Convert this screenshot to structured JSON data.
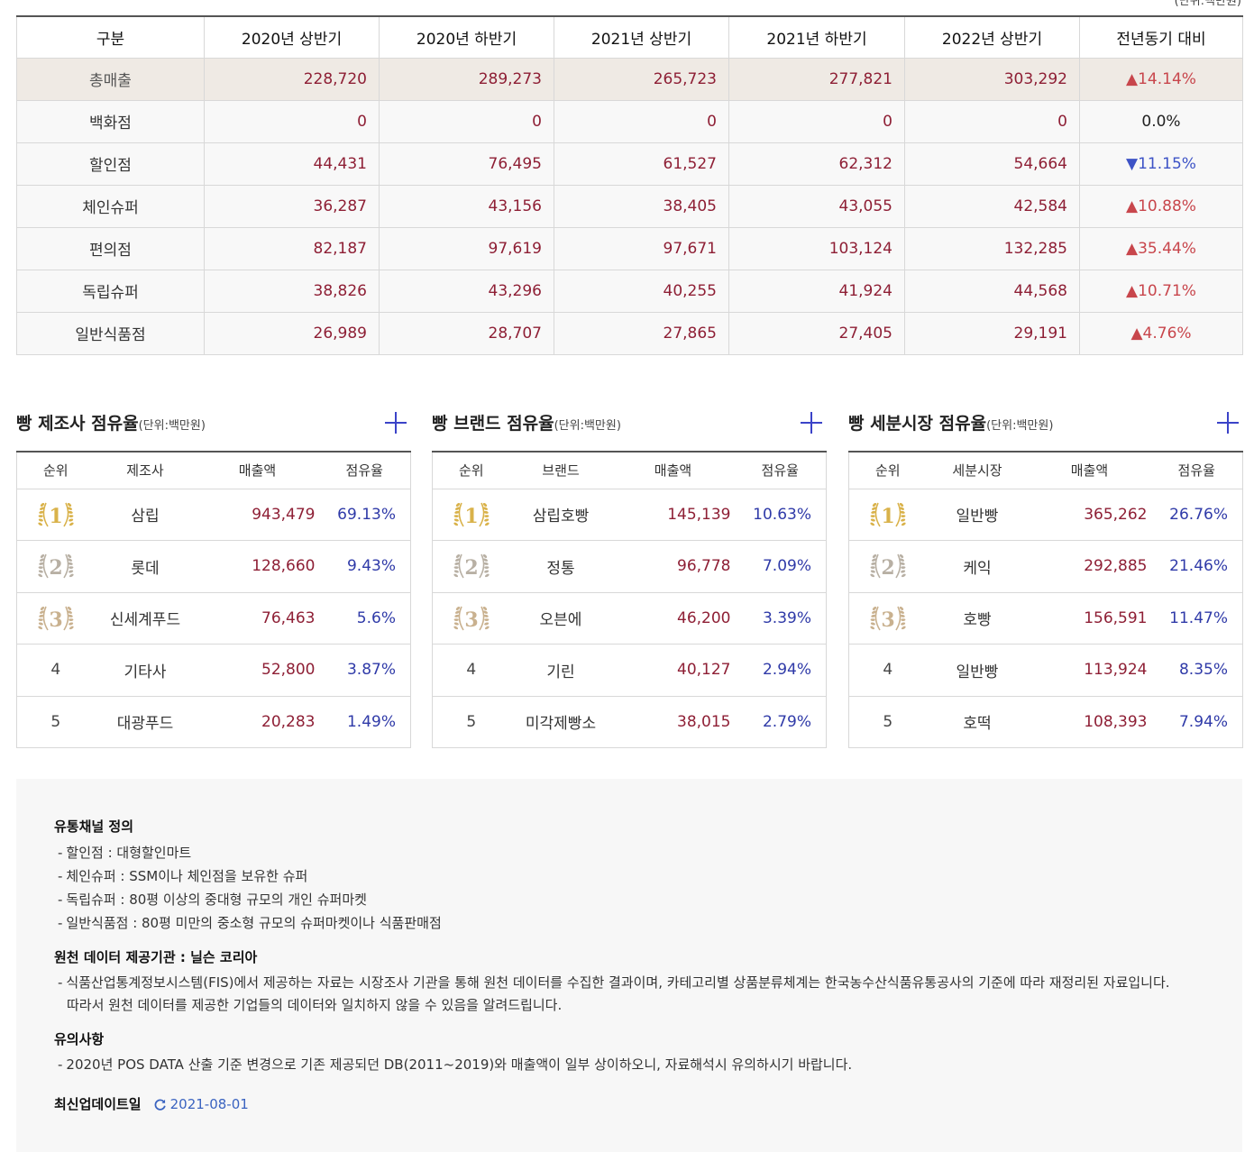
{
  "unit_label": "(단위:백만원)",
  "main_table": {
    "headers": [
      "구분",
      "2020년 상반기",
      "2020년 하반기",
      "2021년 상반기",
      "2021년 하반기",
      "2022년 상반기",
      "전년동기 대비"
    ],
    "rows": [
      {
        "label": "총매출",
        "values": [
          "228,720",
          "289,273",
          "265,723",
          "277,821",
          "303,292"
        ],
        "change": "▲14.14%",
        "dir": "up"
      },
      {
        "label": "백화점",
        "values": [
          "0",
          "0",
          "0",
          "0",
          "0"
        ],
        "change": "0.0%",
        "dir": "flat"
      },
      {
        "label": "할인점",
        "values": [
          "44,431",
          "76,495",
          "61,527",
          "62,312",
          "54,664"
        ],
        "change": "▼11.15%",
        "dir": "down"
      },
      {
        "label": "체인슈퍼",
        "values": [
          "36,287",
          "43,156",
          "38,405",
          "43,055",
          "42,584"
        ],
        "change": "▲10.88%",
        "dir": "up"
      },
      {
        "label": "편의점",
        "values": [
          "82,187",
          "97,619",
          "97,671",
          "103,124",
          "132,285"
        ],
        "change": "▲35.44%",
        "dir": "up"
      },
      {
        "label": "독립슈퍼",
        "values": [
          "38,826",
          "43,296",
          "40,255",
          "41,924",
          "44,568"
        ],
        "change": "▲10.71%",
        "dir": "up"
      },
      {
        "label": "일반식품점",
        "values": [
          "26,989",
          "28,707",
          "27,865",
          "27,405",
          "29,191"
        ],
        "change": "▲4.76%",
        "dir": "up"
      }
    ]
  },
  "panels": [
    {
      "title": "빵 제조사 점유율",
      "unit": "(단위:백만원)",
      "headers": [
        "순위",
        "제조사",
        "매출액",
        "점유율"
      ],
      "rows": [
        {
          "rank": "1",
          "name": "삼립",
          "sales": "943,479",
          "share": "69.13%"
        },
        {
          "rank": "2",
          "name": "롯데",
          "sales": "128,660",
          "share": "9.43%"
        },
        {
          "rank": "3",
          "name": "신세계푸드",
          "sales": "76,463",
          "share": "5.6%"
        },
        {
          "rank": "4",
          "name": "기타사",
          "sales": "52,800",
          "share": "3.87%"
        },
        {
          "rank": "5",
          "name": "대광푸드",
          "sales": "20,283",
          "share": "1.49%"
        }
      ]
    },
    {
      "title": "빵 브랜드 점유율",
      "unit": "(단위:백만원)",
      "headers": [
        "순위",
        "브랜드",
        "매출액",
        "점유율"
      ],
      "rows": [
        {
          "rank": "1",
          "name": "삼립호빵",
          "sales": "145,139",
          "share": "10.63%"
        },
        {
          "rank": "2",
          "name": "정통",
          "sales": "96,778",
          "share": "7.09%"
        },
        {
          "rank": "3",
          "name": "오븐에",
          "sales": "46,200",
          "share": "3.39%"
        },
        {
          "rank": "4",
          "name": "기린",
          "sales": "40,127",
          "share": "2.94%"
        },
        {
          "rank": "5",
          "name": "미각제빵소",
          "sales": "38,015",
          "share": "2.79%"
        }
      ]
    },
    {
      "title": "빵 세분시장 점유율",
      "unit": "(단위:백만원)",
      "headers": [
        "순위",
        "세분시장",
        "매출액",
        "점유율"
      ],
      "rows": [
        {
          "rank": "1",
          "name": "일반빵",
          "sales": "365,262",
          "share": "26.76%"
        },
        {
          "rank": "2",
          "name": "케익",
          "sales": "292,885",
          "share": "21.46%"
        },
        {
          "rank": "3",
          "name": "호빵",
          "sales": "156,591",
          "share": "11.47%"
        },
        {
          "rank": "4",
          "name": "일반빵",
          "sales": "113,924",
          "share": "8.35%"
        },
        {
          "rank": "5",
          "name": "호떡",
          "sales": "108,393",
          "share": "7.94%"
        }
      ]
    }
  ],
  "info": {
    "channel_heading": "유통채널 정의",
    "channel_items": [
      "할인점 : 대형할인마트",
      "체인슈퍼 : SSM이나 체인점을 보유한 슈퍼",
      "독립슈퍼 : 80평 이상의 중대형 규모의 개인 슈퍼마켓",
      "일반식품점 : 80평 미만의 중소형 규모의 슈퍼마켓이나 식품판매점"
    ],
    "source_heading": "원천 데이터 제공기관 : 닐슨 코리아",
    "source_text": "식품산업통계정보시스템(FIS)에서 제공하는 자료는 시장조사 기관을 통해 원천 데이터를 수집한 결과이며, 카테고리별 상품분류체계는 한국농수산식품유통공사의 기준에 따라 재정리된 자료입니다. 따라서 원천 데이터를 제공한 기업들의 데이터와 일치하지 않을 수 있음을 알려드립니다.",
    "notice_heading": "유의사항",
    "notice_text": "2020년 POS DATA 산출 기준 변경으로 기존 제공되던 DB(2011~2019)와 매출액이 일부 상이하오니, 자료해석시 유의하시기 바랍니다.",
    "update_label": "최신업데이트일",
    "update_date": "2021-08-01"
  },
  "colors": {
    "sales_red": "#8e1f35",
    "share_blue": "#2f3aa8",
    "up": "#c8464c",
    "down": "#3d53c6",
    "plus_icon": "#3b43c8",
    "medal_gold": "#d9b24a",
    "medal_silver": "#b8b0a4",
    "medal_bronze": "#c9b18f"
  }
}
